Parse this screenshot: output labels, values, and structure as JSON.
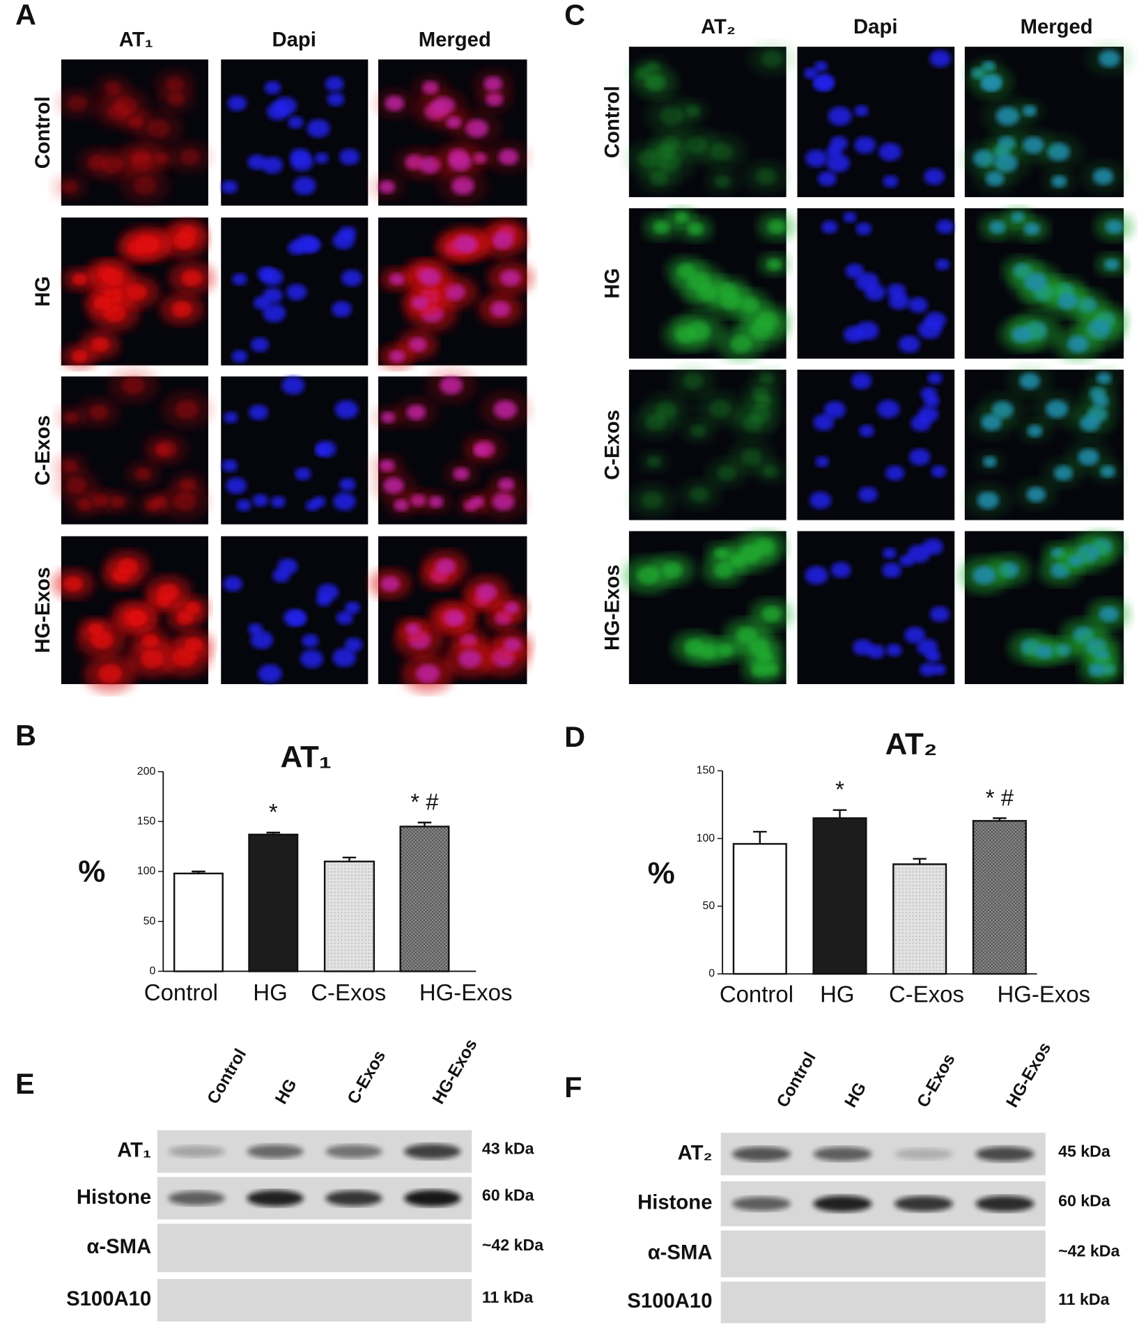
{
  "panel_labels": [
    "A",
    "B",
    "C",
    "D",
    "E",
    "F"
  ],
  "microscopy": [
    {
      "columns": [
        "AT₁",
        "Dapi",
        "Merged"
      ],
      "rows": [
        "Control",
        "HG",
        "C-Exos",
        "HG-Exos"
      ]
    },
    {
      "columns": [
        "AT₂",
        "Dapi",
        "Merged"
      ],
      "rows": [
        "Control",
        "HG",
        "C-Exos",
        "HG-Exos"
      ]
    }
  ],
  "chart_data": [
    {
      "type": "bar",
      "title": "AT₁",
      "ylabel": "%",
      "categories": [
        "Control",
        "HG",
        "C-Exos",
        "HG-Exos"
      ],
      "values": [
        98,
        137,
        110,
        145
      ],
      "errors": [
        2,
        2,
        4,
        4
      ],
      "bar_annotations": [
        null,
        "*",
        null,
        "* #"
      ],
      "colors": [
        "#ffffff",
        "#1c1c1c",
        "#e2e2e2",
        "#8c8c8c"
      ],
      "ylim": [
        0,
        200
      ],
      "yticks": [
        0,
        50,
        100,
        150,
        200
      ]
    },
    {
      "type": "bar",
      "title": "AT₂",
      "ylabel": "%",
      "categories": [
        "Control",
        "HG",
        "C-Exos",
        "HG-Exos"
      ],
      "values": [
        96,
        115,
        81,
        113
      ],
      "errors": [
        9,
        6,
        4,
        2
      ],
      "bar_annotations": [
        null,
        "*",
        null,
        "* #"
      ],
      "colors": [
        "#ffffff",
        "#1c1c1c",
        "#e2e2e2",
        "#8c8c8c"
      ],
      "ylim": [
        0,
        150
      ],
      "yticks": [
        0,
        50,
        100,
        150
      ]
    }
  ],
  "blots": [
    {
      "lanes": [
        "Control",
        "HG",
        "C-Exos",
        "HG-Exos"
      ],
      "rows": [
        {
          "label": "AT₁",
          "size": "43 kDa"
        },
        {
          "label": "Histone",
          "size": "60 kDa"
        },
        {
          "label": "α-SMA",
          "size": "~42 kDa"
        },
        {
          "label": "S100A10",
          "size": "11 kDa"
        }
      ]
    },
    {
      "lanes": [
        "Control",
        "HG",
        "C-Exos",
        "HG-Exos"
      ],
      "rows": [
        {
          "label": "AT₂",
          "size": "45 kDa"
        },
        {
          "label": "Histone",
          "size": "60 kDa"
        },
        {
          "label": "α-SMA",
          "size": "~42 kDa"
        },
        {
          "label": "S100A10",
          "size": "11 kDa"
        }
      ]
    }
  ]
}
